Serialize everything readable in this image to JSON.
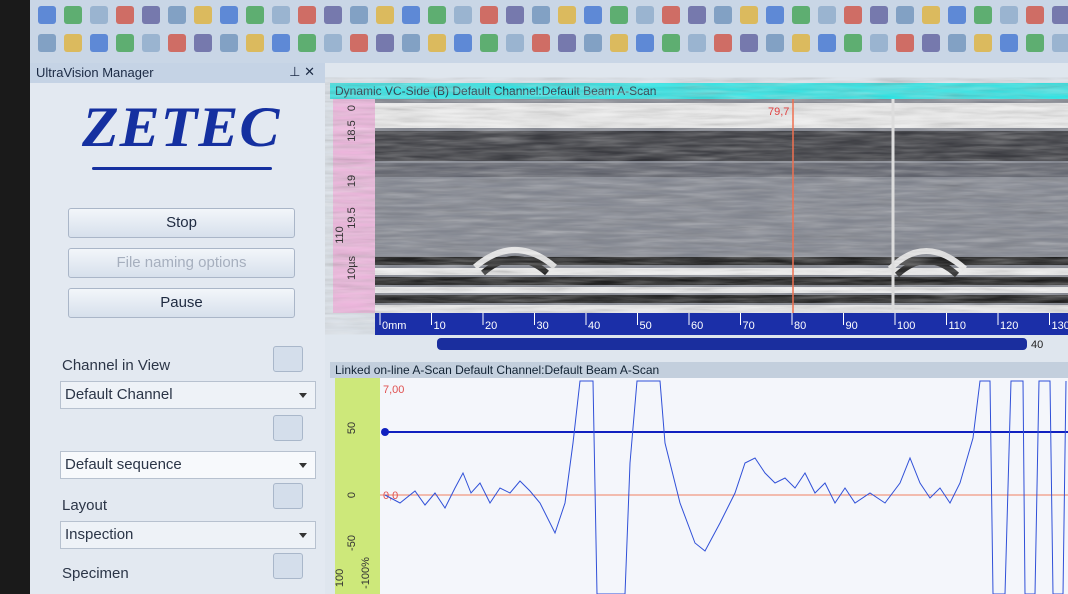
{
  "manager": {
    "title": "UltraVision Manager",
    "logo": "ZETEC",
    "buttons": [
      "Stop",
      "File naming options",
      "Pause"
    ],
    "channel_label": "Channel in View",
    "channel": "Default Channel",
    "sequence": "Default sequence",
    "layout_label": "Layout",
    "layout": "Inspection",
    "specimen_label": "Specimen"
  },
  "bscan": {
    "title": "Dynamic VC-Side (B) Default Channel:Default Beam A-Scan",
    "cursor": "79,7",
    "depth_labels": [
      "0",
      "18.5",
      "19",
      "19.5",
      "110",
      "10µs"
    ],
    "scale_labels": [
      "0mm",
      "10",
      "20",
      "30",
      "40",
      "50",
      "60",
      "70",
      "80",
      "90",
      "100",
      "110",
      "120",
      "130"
    ],
    "scroll_value": "40"
  },
  "ascan": {
    "title": "Linked on-line A-Scan Default Channel:Default Beam A-Scan",
    "amp_top": "7,00",
    "amp_zero": "0,0",
    "ruler_labels": [
      "50",
      "0",
      "-50",
      "-100%",
      "100"
    ]
  }
}
